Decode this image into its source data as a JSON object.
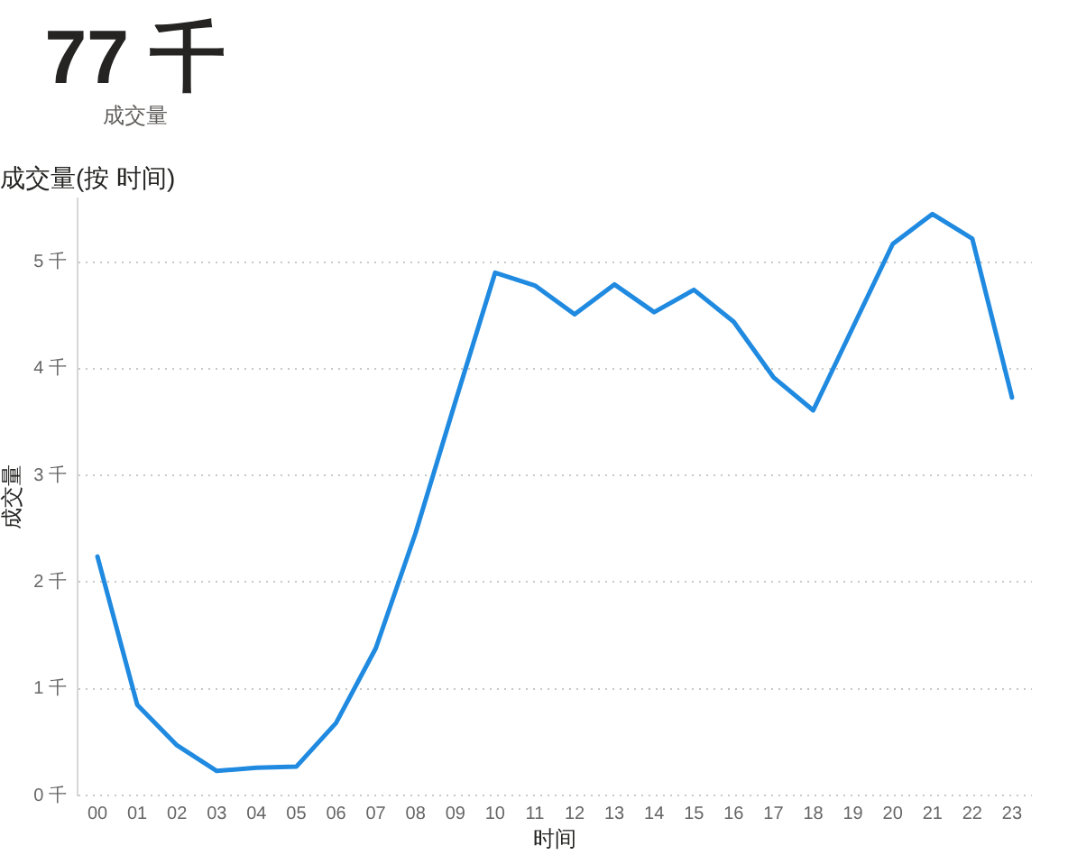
{
  "chart_data": [
    {
      "type": "other",
      "title": "77 千",
      "subtitle": "成交量"
    },
    {
      "type": "line",
      "title": "成交量(按 时间)",
      "xlabel": "时间",
      "ylabel": "成交量",
      "categories": [
        "00",
        "01",
        "02",
        "03",
        "04",
        "05",
        "06",
        "07",
        "08",
        "09",
        "10",
        "11",
        "12",
        "13",
        "14",
        "15",
        "16",
        "17",
        "18",
        "19",
        "20",
        "21",
        "22",
        "23"
      ],
      "series": [
        {
          "color": "#1f8ae0",
          "values": [
            2.24,
            0.85,
            0.47,
            0.23,
            0.26,
            0.27,
            0.68,
            1.38,
            2.46,
            3.69,
            4.9,
            4.78,
            4.51,
            4.79,
            4.53,
            4.74,
            4.44,
            3.92,
            3.61,
            4.39,
            5.17,
            5.45,
            5.22,
            3.73
          ]
        }
      ],
      "ylim": [
        0,
        5.6
      ],
      "yticks": [
        {
          "value": 0,
          "label": "0 千"
        },
        {
          "value": 1,
          "label": "1 千"
        },
        {
          "value": 2,
          "label": "2 千"
        },
        {
          "value": 3,
          "label": "3 千"
        },
        {
          "value": 4,
          "label": "4 千"
        },
        {
          "value": 5,
          "label": "5 千"
        }
      ],
      "grid": "y",
      "line_style": "solid"
    }
  ]
}
